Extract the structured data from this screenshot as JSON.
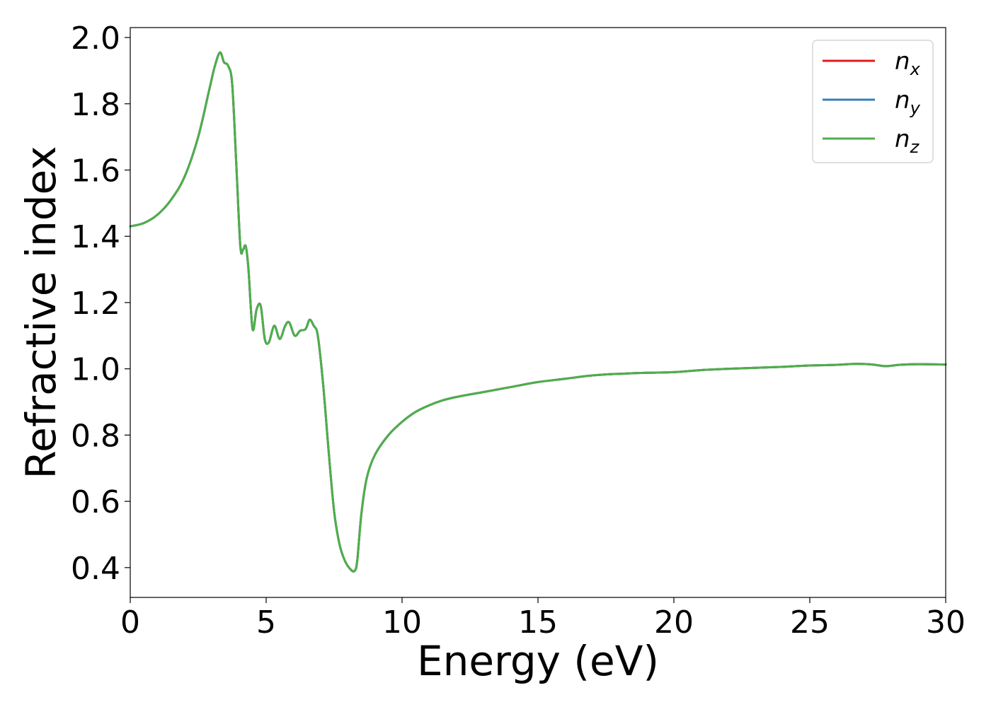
{
  "chart_data": {
    "type": "line",
    "xlabel": "Energy (eV)",
    "ylabel": "Refractive index",
    "xlim": [
      0,
      30
    ],
    "ylim": [
      0.31,
      2.03
    ],
    "xticks": [
      0,
      5,
      10,
      15,
      20,
      25,
      30
    ],
    "yticks": [
      0.4,
      0.6,
      0.8,
      1.0,
      1.2,
      1.4,
      1.6,
      1.8,
      2.0
    ],
    "ytick_labels": [
      "0.4",
      "0.6",
      "0.8",
      "1.0",
      "1.2",
      "1.4",
      "1.6",
      "1.8",
      "2.0"
    ],
    "grid": false,
    "legend_position": "top-right",
    "x": [
      0.0,
      0.5,
      1.0,
      1.5,
      2.0,
      2.5,
      2.9,
      3.1,
      3.3,
      3.45,
      3.6,
      3.75,
      3.9,
      4.05,
      4.15,
      4.25,
      4.35,
      4.5,
      4.65,
      4.8,
      4.95,
      5.1,
      5.3,
      5.5,
      5.7,
      5.85,
      6.05,
      6.25,
      6.45,
      6.6,
      6.75,
      6.9,
      7.1,
      7.3,
      7.5,
      7.7,
      7.9,
      8.1,
      8.25,
      8.35,
      8.5,
      8.7,
      9.0,
      9.5,
      10.0,
      10.5,
      11.0,
      11.5,
      12.0,
      13.0,
      14.0,
      15.0,
      16.0,
      17.0,
      18.0,
      19.0,
      20.0,
      21.0,
      22.0,
      23.0,
      24.0,
      25.0,
      26.0,
      26.7,
      27.3,
      27.8,
      28.3,
      29.0,
      30.0
    ],
    "series": [
      {
        "name": "n_x",
        "label_base": "n",
        "label_sub": "x",
        "color": "#e41a1c",
        "values": [
          1.43,
          1.44,
          1.465,
          1.51,
          1.58,
          1.7,
          1.84,
          1.91,
          1.955,
          1.925,
          1.915,
          1.86,
          1.62,
          1.37,
          1.36,
          1.37,
          1.3,
          1.12,
          1.18,
          1.19,
          1.09,
          1.08,
          1.13,
          1.09,
          1.13,
          1.14,
          1.1,
          1.115,
          1.12,
          1.148,
          1.13,
          1.1,
          0.95,
          0.75,
          0.57,
          0.47,
          0.42,
          0.395,
          0.39,
          0.42,
          0.56,
          0.67,
          0.74,
          0.8,
          0.84,
          0.87,
          0.89,
          0.905,
          0.915,
          0.93,
          0.945,
          0.96,
          0.97,
          0.98,
          0.985,
          0.988,
          0.99,
          0.996,
          1.0,
          1.003,
          1.006,
          1.01,
          1.012,
          1.015,
          1.013,
          1.008,
          1.012,
          1.014,
          1.013
        ]
      },
      {
        "name": "n_y",
        "label_base": "n",
        "label_sub": "y",
        "color": "#377eb8",
        "values": [
          1.43,
          1.44,
          1.465,
          1.51,
          1.58,
          1.7,
          1.84,
          1.91,
          1.955,
          1.925,
          1.915,
          1.86,
          1.62,
          1.37,
          1.36,
          1.37,
          1.3,
          1.12,
          1.18,
          1.19,
          1.09,
          1.08,
          1.13,
          1.09,
          1.13,
          1.14,
          1.1,
          1.115,
          1.12,
          1.148,
          1.13,
          1.1,
          0.95,
          0.75,
          0.57,
          0.47,
          0.42,
          0.395,
          0.39,
          0.42,
          0.56,
          0.67,
          0.74,
          0.8,
          0.84,
          0.87,
          0.89,
          0.905,
          0.915,
          0.93,
          0.945,
          0.96,
          0.97,
          0.98,
          0.985,
          0.988,
          0.99,
          0.996,
          1.0,
          1.003,
          1.006,
          1.01,
          1.012,
          1.015,
          1.013,
          1.008,
          1.012,
          1.014,
          1.013
        ]
      },
      {
        "name": "n_z",
        "label_base": "n",
        "label_sub": "z",
        "color": "#4daf4a",
        "values": [
          1.43,
          1.44,
          1.465,
          1.51,
          1.58,
          1.7,
          1.84,
          1.91,
          1.955,
          1.925,
          1.915,
          1.86,
          1.62,
          1.37,
          1.36,
          1.37,
          1.3,
          1.12,
          1.18,
          1.19,
          1.09,
          1.08,
          1.13,
          1.09,
          1.13,
          1.14,
          1.1,
          1.115,
          1.12,
          1.148,
          1.13,
          1.1,
          0.95,
          0.75,
          0.57,
          0.47,
          0.42,
          0.395,
          0.39,
          0.42,
          0.56,
          0.67,
          0.74,
          0.8,
          0.84,
          0.87,
          0.89,
          0.905,
          0.915,
          0.93,
          0.945,
          0.96,
          0.97,
          0.98,
          0.985,
          0.988,
          0.99,
          0.996,
          1.0,
          1.003,
          1.006,
          1.01,
          1.012,
          1.015,
          1.013,
          1.008,
          1.012,
          1.014,
          1.013
        ]
      }
    ]
  }
}
